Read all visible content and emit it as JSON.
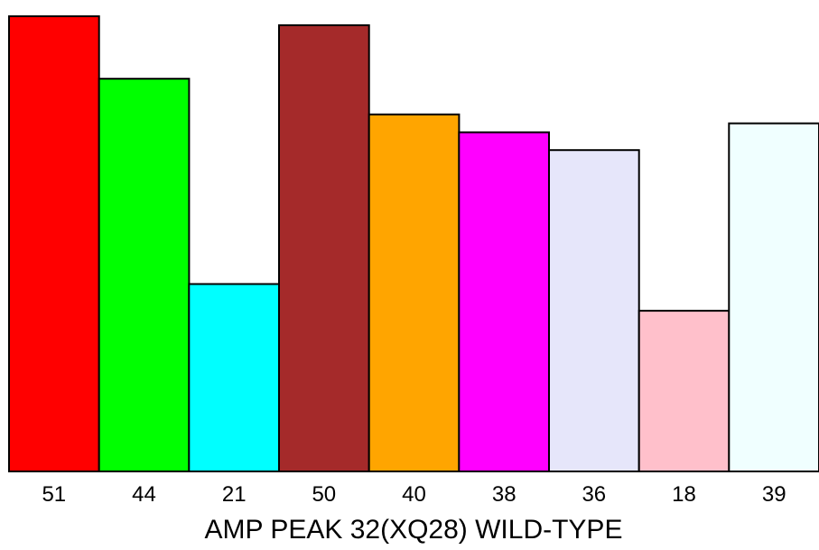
{
  "chart_data": {
    "type": "bar",
    "categories": [
      "51",
      "44",
      "21",
      "50",
      "40",
      "38",
      "36",
      "18",
      "39"
    ],
    "values": [
      51,
      44,
      21,
      50,
      40,
      38,
      36,
      18,
      39
    ],
    "colors": [
      "#ff0000",
      "#00ff00",
      "#00ffff",
      "#a52a2a",
      "#ffa500",
      "#ff00ff",
      "#e6e6fa",
      "#ffc0cb",
      "#f0ffff"
    ],
    "title": "",
    "xlabel": "AMP PEAK 32(XQ28) WILD-TYPE",
    "ylabel": "",
    "ylim": [
      0,
      51
    ],
    "grid": false,
    "legend": "none"
  }
}
